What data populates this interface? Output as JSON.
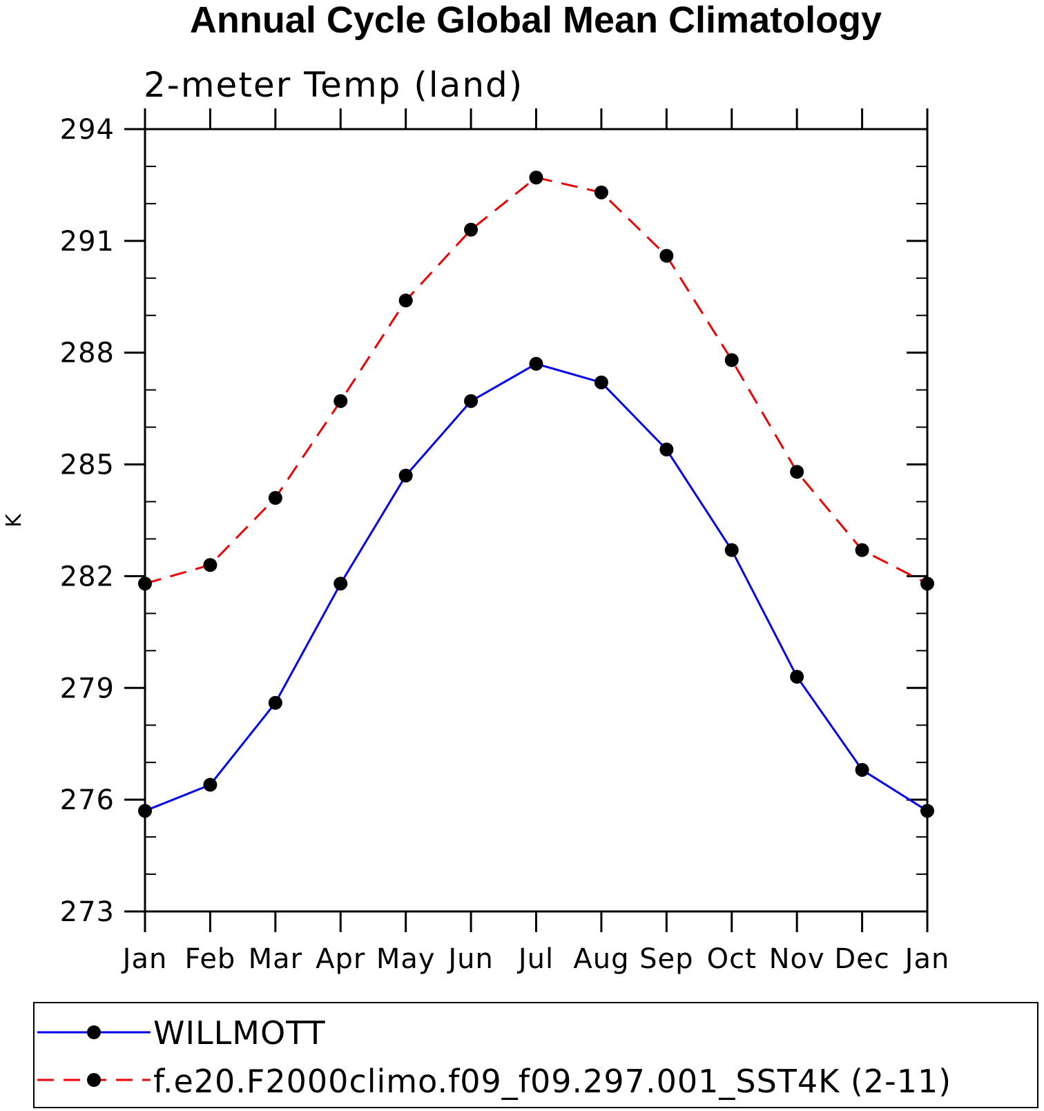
{
  "chart_data": {
    "type": "line",
    "title": "Annual Cycle Global Mean Climatology",
    "subtitle": "2-meter Temp (land)",
    "xlabel": "",
    "ylabel": "K",
    "categories": [
      "Jan",
      "Feb",
      "Mar",
      "Apr",
      "May",
      "Jun",
      "Jul",
      "Aug",
      "Sep",
      "Oct",
      "Nov",
      "Dec",
      "Jan"
    ],
    "ylim": [
      273,
      294
    ],
    "y_major_ticks": [
      273,
      276,
      279,
      282,
      285,
      288,
      291,
      294
    ],
    "y_tick_labels": [
      "273",
      "276",
      "279",
      "282",
      "285",
      "288",
      "291",
      "294"
    ],
    "y_minor_step": 1,
    "grid": false,
    "legend_position": "bottom",
    "series": [
      {
        "name": "WILLMOTT",
        "color": "#0000ee",
        "style": "solid",
        "marker": "filled-circle",
        "values": [
          275.7,
          276.4,
          278.6,
          281.8,
          284.7,
          286.7,
          287.7,
          287.2,
          285.4,
          282.7,
          279.3,
          276.8,
          275.7
        ]
      },
      {
        "name": "f.e20.F2000climo.f09_f09.297.001_SST4K (2-11)",
        "color": "#ee0000",
        "style": "dashed",
        "marker": "filled-circle",
        "values": [
          281.8,
          282.3,
          284.1,
          286.7,
          289.4,
          291.3,
          292.7,
          292.3,
          290.6,
          287.8,
          284.8,
          282.7,
          281.8
        ]
      }
    ]
  }
}
